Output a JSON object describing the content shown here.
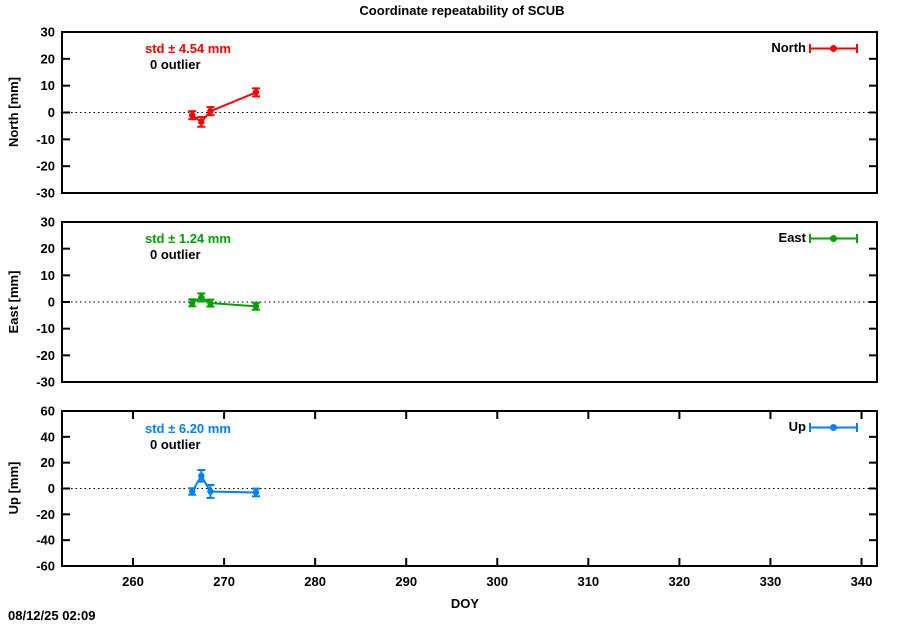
{
  "title": "Coordinate repeatability of SCUB",
  "timestamp": "08/12/25 02:09",
  "chart_data": {
    "type": "line",
    "title": "Coordinate repeatability of SCUB",
    "xlabel": "DOY",
    "xlim": [
      252.2,
      341.7
    ],
    "xticks": [
      260,
      270,
      280,
      290,
      300,
      310,
      320,
      330,
      340
    ],
    "grid": false,
    "zero_line": "dotted",
    "legend_position": "top-right-inside",
    "panels": [
      {
        "name": "North",
        "legend": "North",
        "ylabel": "North [mm]",
        "ylim": [
          -30,
          30
        ],
        "yticks": [
          -30,
          -20,
          -10,
          0,
          10,
          20,
          30
        ],
        "color": "#ff0000",
        "std_label": "std ± 4.54 mm",
        "outlier_label": "0 outlier",
        "x": [
          266.5,
          267.5,
          268.5,
          273.5
        ],
        "y": [
          -1.0,
          -3.5,
          0.5,
          7.5
        ],
        "yerr": [
          1.5,
          1.8,
          1.5,
          1.5
        ]
      },
      {
        "name": "East",
        "legend": "East",
        "ylabel": "East [mm]",
        "ylim": [
          -30,
          30
        ],
        "yticks": [
          -30,
          -20,
          -10,
          0,
          10,
          20,
          30
        ],
        "color": "#00a000",
        "std_label": "std ± 1.24 mm",
        "outlier_label": "0 outlier",
        "x": [
          266.5,
          267.5,
          268.5,
          273.5
        ],
        "y": [
          -0.3,
          1.7,
          -0.4,
          -1.6
        ],
        "yerr": [
          1.3,
          1.5,
          1.3,
          1.3
        ]
      },
      {
        "name": "Up",
        "legend": "Up",
        "ylabel": "Up [mm]",
        "ylim": [
          -60,
          60
        ],
        "yticks": [
          -60,
          -40,
          -20,
          0,
          20,
          40,
          60
        ],
        "color": "#0080ff",
        "std_label": "std ± 6.20 mm",
        "outlier_label": "0 outlier",
        "x": [
          266.5,
          267.5,
          268.5,
          273.5
        ],
        "y": [
          -2.3,
          9.8,
          -2.3,
          -3.1
        ],
        "yerr": [
          2.5,
          4.5,
          5.0,
          3.0
        ]
      }
    ]
  }
}
